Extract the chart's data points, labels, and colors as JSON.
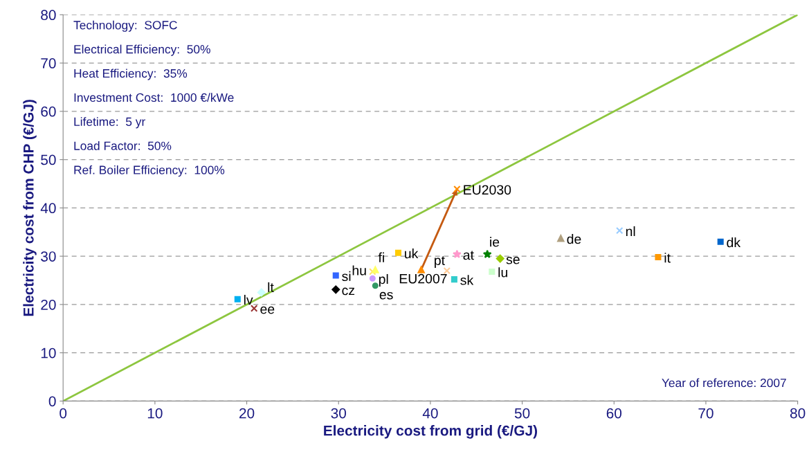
{
  "chart_data": {
    "type": "scatter",
    "xlabel": "Electricity cost from grid (€/GJ)",
    "ylabel": "Electricity cost from CHP (€/GJ)",
    "xlim": [
      0,
      80
    ],
    "ylim": [
      0,
      80
    ],
    "xticks": [
      0,
      10,
      20,
      30,
      40,
      50,
      60,
      70,
      80
    ],
    "yticks": [
      0,
      10,
      20,
      30,
      40,
      50,
      60,
      70,
      80
    ],
    "grid": "y",
    "legend": false,
    "series": [
      {
        "type": "line",
        "color": "#8dc63f",
        "x": [
          0,
          80
        ],
        "values": [
          0,
          80
        ],
        "marker": "none"
      },
      {
        "type": "line",
        "color": "#c55a11",
        "x": [
          39.0,
          42.9
        ],
        "values": [
          27.2,
          43.9
        ],
        "marker": "none"
      },
      {
        "name": "lv",
        "color": "#00b0f0",
        "marker": "square",
        "x": [
          19.0
        ],
        "values": [
          21.1
        ]
      },
      {
        "name": "lt",
        "color": "#ccffff",
        "marker": "diamond",
        "x": [
          21.6
        ],
        "values": [
          22.5
        ]
      },
      {
        "name": "ee",
        "color": "#993333",
        "marker": "cross",
        "x": [
          20.8
        ],
        "values": [
          19.2
        ]
      },
      {
        "name": "si",
        "color": "#3366ff",
        "marker": "square",
        "x": [
          29.7
        ],
        "values": [
          26.0
        ]
      },
      {
        "name": "cz",
        "color": "#000000",
        "marker": "diamond",
        "x": [
          29.7
        ],
        "values": [
          23.1
        ]
      },
      {
        "name": "hu",
        "color": "#ffe066",
        "marker": "cross",
        "x": [
          33.7
        ],
        "values": [
          26.8
        ]
      },
      {
        "name": "fi",
        "color": "#ffff66",
        "marker": "triangle",
        "x": [
          34.0
        ],
        "values": [
          27.2
        ]
      },
      {
        "name": "pl",
        "color": "#cc99ff",
        "marker": "circle",
        "x": [
          33.7
        ],
        "values": [
          25.4
        ]
      },
      {
        "name": "es",
        "color": "#339966",
        "marker": "circle",
        "x": [
          34.0
        ],
        "values": [
          23.9
        ]
      },
      {
        "name": "uk",
        "color": "#ffcc00",
        "marker": "square",
        "x": [
          36.5
        ],
        "values": [
          30.7
        ]
      },
      {
        "name": "EU2007",
        "color": "#ff8c00",
        "marker": "triangle",
        "x": [
          39.0
        ],
        "values": [
          27.2
        ]
      },
      {
        "name": "EU2030",
        "color": "#ff8c00",
        "marker": "cross",
        "x": [
          42.9
        ],
        "values": [
          43.9
        ]
      },
      {
        "name": "at",
        "color": "#ff99cc",
        "marker": "star",
        "x": [
          42.9
        ],
        "values": [
          30.4
        ]
      },
      {
        "name": "ie",
        "color": "#008000",
        "marker": "star",
        "x": [
          46.2
        ],
        "values": [
          30.4
        ]
      },
      {
        "name": "se",
        "color": "#99cc00",
        "marker": "diamond",
        "x": [
          47.6
        ],
        "values": [
          29.5
        ]
      },
      {
        "name": "pt",
        "color": "#ffcc99",
        "marker": "cross",
        "x": [
          41.8
        ],
        "values": [
          27.0
        ]
      },
      {
        "name": "sk",
        "color": "#33cccc",
        "marker": "square",
        "x": [
          42.6
        ],
        "values": [
          25.2
        ]
      },
      {
        "name": "lu",
        "color": "#ccffcc",
        "marker": "square",
        "x": [
          46.7
        ],
        "values": [
          26.8
        ]
      },
      {
        "name": "de",
        "color": "#b0a080",
        "marker": "triangle",
        "x": [
          54.2
        ],
        "values": [
          33.7
        ]
      },
      {
        "name": "nl",
        "color": "#99ccff",
        "marker": "cross",
        "x": [
          60.6
        ],
        "values": [
          35.3
        ]
      },
      {
        "name": "it",
        "color": "#ff9900",
        "marker": "square",
        "x": [
          64.8
        ],
        "values": [
          29.8
        ]
      },
      {
        "name": "dk",
        "color": "#0066cc",
        "marker": "square",
        "x": [
          71.6
        ],
        "values": [
          33.0
        ]
      }
    ],
    "annotations": [
      "Technology:  SOFC",
      "Electrical Efficiency:  50%",
      "Heat Efficiency:  35%",
      "Investment Cost:  1000 €/kWe",
      "Lifetime:  5 yr",
      "Load Factor:  50%",
      "Ref. Boiler Efficiency:  100%",
      "Year of reference: 2007"
    ]
  }
}
